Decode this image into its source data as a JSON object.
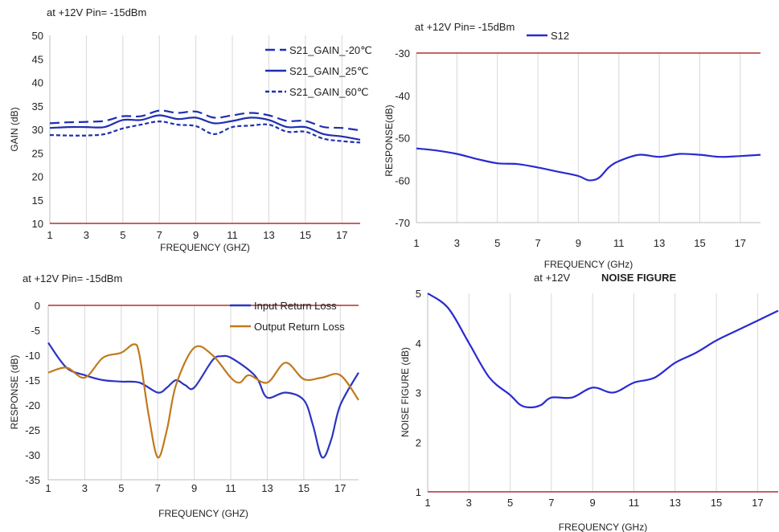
{
  "chart_data": [
    {
      "type": "line",
      "note": "at +12V Pin= -15dBm",
      "title": "",
      "xlabel": "FREQUENCY (GHZ)",
      "ylabel": "GAIN (dB)",
      "xlim": [
        1,
        18
      ],
      "ylim": [
        10,
        50
      ],
      "xticks": [
        1,
        3,
        5,
        7,
        9,
        11,
        13,
        15,
        17
      ],
      "yticks": [
        10,
        15,
        20,
        25,
        30,
        35,
        40,
        45,
        50
      ],
      "grid": "vertical",
      "legend": "top-right",
      "series": [
        {
          "name": "S21_GAIN_-20℃",
          "color": "#1f2fb0",
          "dash": "long-dash",
          "x": [
            1,
            2,
            3,
            4,
            5,
            6,
            7,
            8,
            9,
            10,
            11,
            12,
            13,
            14,
            15,
            16,
            17,
            18
          ],
          "y": [
            31.3,
            31.5,
            31.6,
            31.8,
            32.8,
            32.8,
            34.0,
            33.5,
            33.8,
            32.5,
            33.0,
            33.5,
            33.0,
            31.8,
            31.8,
            30.5,
            30.3,
            29.8
          ]
        },
        {
          "name": "S21_GAIN_25℃",
          "color": "#1f2fb0",
          "dash": "solid",
          "x": [
            1,
            2,
            3,
            4,
            5,
            6,
            7,
            8,
            9,
            10,
            11,
            12,
            13,
            14,
            15,
            16,
            17,
            18
          ],
          "y": [
            30.3,
            30.5,
            30.5,
            30.5,
            32.0,
            32.0,
            33.0,
            32.2,
            32.5,
            31.3,
            31.8,
            32.5,
            32.0,
            30.5,
            30.5,
            29.0,
            28.5,
            27.8
          ]
        },
        {
          "name": "S21_GAIN_60℃",
          "color": "#1f2fb0",
          "dash": "short-dash",
          "x": [
            1,
            2,
            3,
            4,
            5,
            6,
            7,
            8,
            9,
            10,
            11,
            12,
            13,
            14,
            15,
            16,
            17,
            18
          ],
          "y": [
            28.8,
            28.7,
            28.7,
            29.0,
            30.2,
            31.0,
            31.7,
            31.0,
            30.7,
            29.0,
            30.5,
            30.8,
            31.0,
            29.5,
            29.5,
            28.0,
            27.5,
            27.2
          ]
        }
      ],
      "reference_line": {
        "y": 10,
        "color": "#b03030"
      }
    },
    {
      "type": "line",
      "note": "at +12V Pin= -15dBm",
      "title": "",
      "xlabel": "FREQUENCY (GHz)",
      "ylabel": "RESPONSE(dB)",
      "xlim": [
        1,
        18
      ],
      "ylim": [
        -70,
        -30
      ],
      "xticks": [
        1,
        3,
        5,
        7,
        9,
        11,
        13,
        15,
        17
      ],
      "yticks": [
        -30,
        -40,
        -50,
        -60,
        -70
      ],
      "grid": "vertical",
      "legend": "top",
      "series": [
        {
          "name": "S12",
          "color": "#2a2ad0",
          "dash": "solid",
          "x": [
            1,
            2,
            3,
            4,
            5,
            6,
            7,
            8,
            9,
            9.5,
            10,
            10.5,
            11,
            12,
            13,
            14,
            15,
            16,
            17,
            18
          ],
          "y": [
            -52.5,
            -53.0,
            -53.8,
            -55.0,
            -56.0,
            -56.2,
            -57.0,
            -58.0,
            -59.0,
            -60.0,
            -59.5,
            -57.0,
            -55.5,
            -54.0,
            -54.5,
            -53.8,
            -54.0,
            -54.5,
            -54.3,
            -54.0
          ]
        }
      ],
      "reference_line": {
        "y": -30,
        "color": "#b03030"
      }
    },
    {
      "type": "line",
      "note": "at +12V Pin= -15dBm",
      "title": "",
      "xlabel": "FREQUENCY (GHZ)",
      "ylabel": "RESPONSE (dB)",
      "xlim": [
        1,
        18
      ],
      "ylim": [
        -35,
        0
      ],
      "xticks": [
        1,
        3,
        5,
        7,
        9,
        11,
        13,
        15,
        17
      ],
      "yticks": [
        0,
        -5,
        -10,
        -15,
        -20,
        -25,
        -30,
        -35
      ],
      "grid": "vertical",
      "legend": "top-right",
      "series": [
        {
          "name": "Input   Return Loss",
          "color": "#2b35c0",
          "dash": "solid",
          "x": [
            1,
            2,
            3,
            4,
            5,
            6,
            7,
            7.5,
            8,
            8.5,
            9,
            10,
            10.5,
            11,
            12,
            12.5,
            13,
            14,
            15,
            15.5,
            16,
            16.5,
            17,
            18
          ],
          "y": [
            -7.5,
            -12.5,
            -14.0,
            -15.0,
            -15.3,
            -15.5,
            -17.5,
            -16.5,
            -15.0,
            -16.0,
            -16.5,
            -11.0,
            -10.2,
            -10.5,
            -13.0,
            -15.0,
            -18.5,
            -17.5,
            -19.0,
            -24.0,
            -30.5,
            -27.0,
            -20.0,
            -13.5
          ]
        },
        {
          "name": "Output Return Loss",
          "color": "#c07a1e",
          "dash": "solid",
          "x": [
            1,
            2,
            3,
            4,
            5,
            5.7,
            6,
            6.5,
            7,
            7.5,
            8,
            9,
            10,
            11,
            11.5,
            12,
            13,
            14,
            15,
            16,
            17,
            18
          ],
          "y": [
            -13.5,
            -12.5,
            -14.5,
            -10.5,
            -9.5,
            -7.8,
            -10.0,
            -22.0,
            -30.5,
            -25.0,
            -16.0,
            -8.5,
            -10.0,
            -14.5,
            -15.5,
            -14.0,
            -15.5,
            -11.5,
            -14.8,
            -14.5,
            -14.0,
            -19.0
          ]
        }
      ],
      "reference_line": {
        "y": 0,
        "color": "#b03030"
      }
    },
    {
      "type": "line",
      "note": "at +12V",
      "title": "NOISE FIGURE",
      "xlabel": "FREQUENCY (GHz)",
      "ylabel": "NOISE FIGURE (dB)",
      "xlim": [
        1,
        18
      ],
      "ylim": [
        1,
        5
      ],
      "xticks": [
        1,
        3,
        5,
        7,
        9,
        11,
        13,
        15,
        17
      ],
      "yticks": [
        1,
        2,
        3,
        4,
        5
      ],
      "grid": "vertical",
      "legend": "none",
      "series": [
        {
          "name": "",
          "color": "#2a2ad0",
          "dash": "solid",
          "x": [
            1,
            2,
            3,
            4,
            5,
            5.5,
            6,
            6.5,
            7,
            8,
            9,
            10,
            11,
            12,
            13,
            14,
            15,
            16,
            17,
            18
          ],
          "y": [
            5.0,
            4.7,
            4.0,
            3.3,
            2.95,
            2.75,
            2.7,
            2.75,
            2.9,
            2.9,
            3.1,
            3.0,
            3.2,
            3.3,
            3.6,
            3.8,
            4.05,
            4.25,
            4.45,
            4.65
          ]
        }
      ],
      "reference_line": {
        "y": 1,
        "color": "#b03030"
      }
    }
  ]
}
